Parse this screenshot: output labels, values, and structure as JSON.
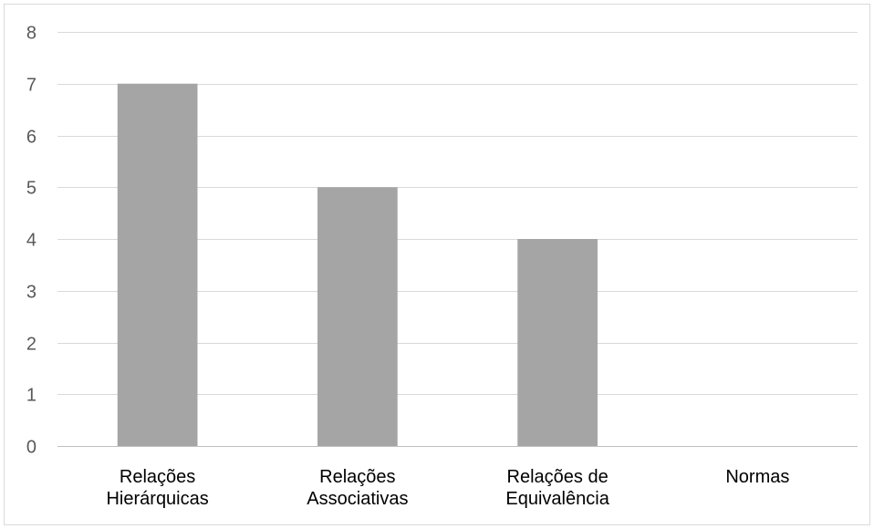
{
  "chart_data": {
    "type": "bar",
    "categories": [
      [
        "Relações",
        "Hierárquicas"
      ],
      [
        "Relações",
        "Associativas"
      ],
      [
        "Relações de",
        "Equivalência"
      ],
      [
        "Normas"
      ]
    ],
    "values": [
      7,
      5,
      4,
      0
    ],
    "ylim": [
      0,
      8
    ],
    "yticks": [
      0,
      1,
      2,
      3,
      4,
      5,
      6,
      7,
      8
    ],
    "grid": true,
    "colors": {
      "bar": "#a5a5a5",
      "grid": "#d9d9d9",
      "axis": "#bfbfbf",
      "tick_text": "#595959",
      "category_text": "#000000"
    }
  }
}
